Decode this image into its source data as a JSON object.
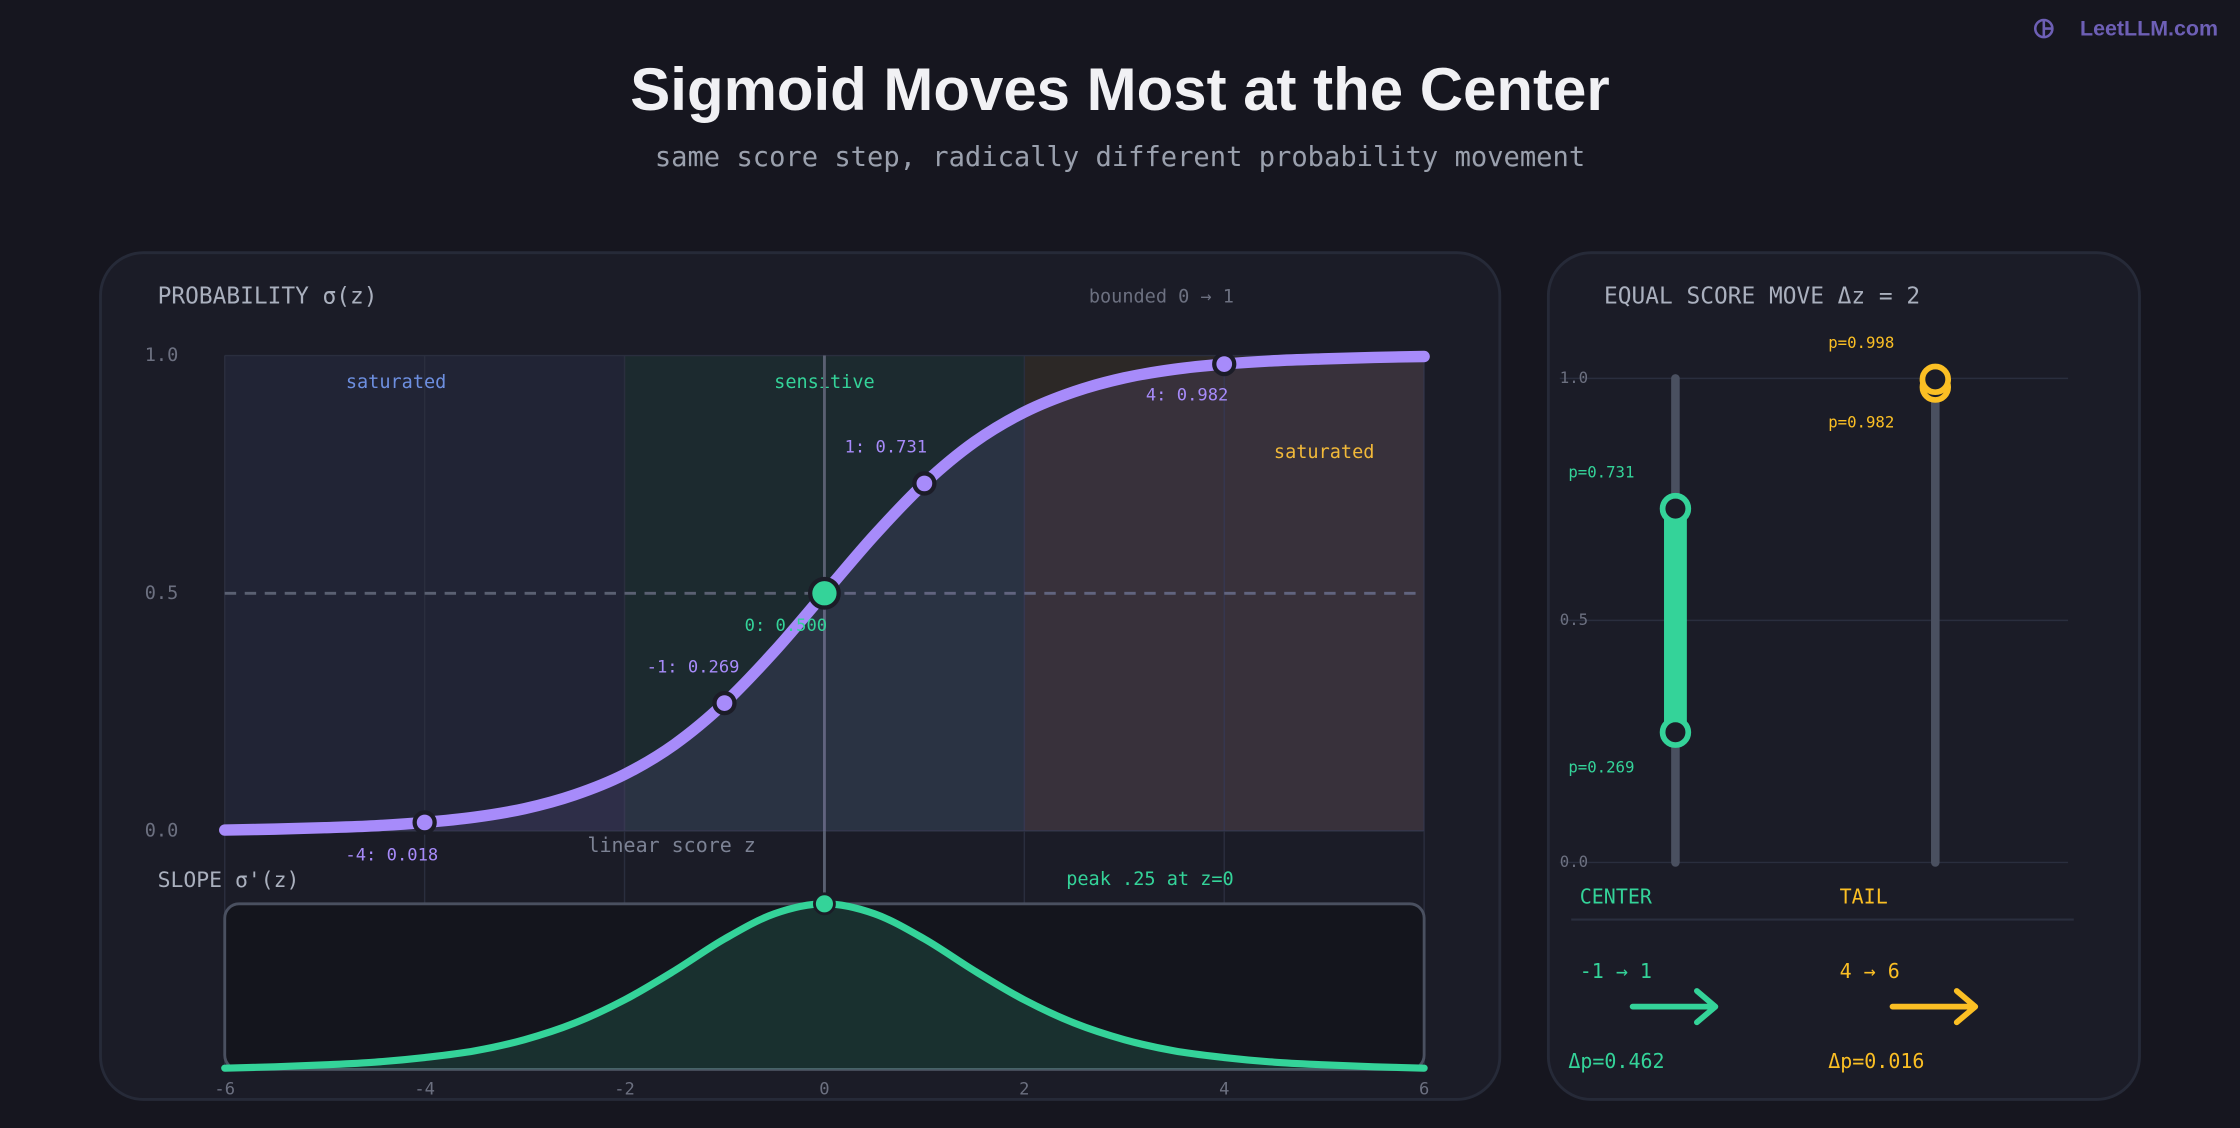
{
  "brand": "LeetLLM.com",
  "title": "Sigmoid Moves Most at the Center",
  "subtitle": "same score step, radically different probability movement",
  "chart_data": [
    {
      "type": "line",
      "title": "PROBABILITY σ(z)",
      "note": "bounded 0 → 1",
      "x_label": "linear score z",
      "xlim": [
        -6,
        6
      ],
      "ylim": [
        0,
        1
      ],
      "xticks": [
        -6,
        -4,
        -2,
        0,
        2,
        4,
        6
      ],
      "yticks": [
        {
          "value": 0,
          "label": "0.0"
        },
        {
          "value": 0.5,
          "label": "0.5"
        },
        {
          "value": 1,
          "label": "1.0"
        }
      ],
      "regions": [
        {
          "label": "saturated",
          "from": -6,
          "to": -2,
          "color": "#6d8fe0"
        },
        {
          "label": "sensitive",
          "from": -2,
          "to": 2,
          "color": "#34d399"
        },
        {
          "label": "saturated",
          "from": 2,
          "to": 6,
          "color": "#fbbf24"
        }
      ],
      "series": [
        {
          "color": "#a78bfa",
          "x": [
            -6,
            -5.5,
            -5,
            -4.5,
            -4,
            -3.5,
            -3,
            -2.5,
            -2,
            -1.5,
            -1,
            -0.5,
            0,
            0.5,
            1,
            1.5,
            2,
            2.5,
            3,
            3.5,
            4,
            4.5,
            5,
            5.5,
            6
          ],
          "values": [
            0.002,
            0.004,
            0.007,
            0.011,
            0.018,
            0.029,
            0.047,
            0.076,
            0.119,
            0.182,
            0.269,
            0.378,
            0.5,
            0.622,
            0.731,
            0.818,
            0.881,
            0.924,
            0.953,
            0.971,
            0.982,
            0.989,
            0.993,
            0.996,
            0.998
          ]
        }
      ],
      "points": {
        "x": [
          -4,
          -1,
          0,
          1,
          4
        ],
        "values": [
          0.018,
          0.269,
          0.5,
          0.731,
          0.982
        ],
        "value_labels": [
          "-4: 0.018",
          "-1: 0.269",
          "0: 0.500",
          "1: 0.731",
          "4: 0.982"
        ]
      }
    },
    {
      "type": "area",
      "title": "SLOPE σ'(z)",
      "annotation": "peak .25 at z=0",
      "xlim": [
        -6,
        6
      ],
      "ylim": [
        0,
        0.25
      ],
      "color": "#34d399",
      "x": [
        -6,
        -5.5,
        -5,
        -4.5,
        -4,
        -3.5,
        -3,
        -2.5,
        -2,
        -1.5,
        -1,
        -0.5,
        0,
        0.5,
        1,
        1.5,
        2,
        2.5,
        3,
        3.5,
        4,
        4.5,
        5,
        5.5,
        6
      ],
      "values": [
        0.002,
        0.004,
        0.007,
        0.011,
        0.018,
        0.028,
        0.045,
        0.07,
        0.105,
        0.149,
        0.197,
        0.235,
        0.25,
        0.235,
        0.197,
        0.149,
        0.105,
        0.07,
        0.045,
        0.028,
        0.018,
        0.011,
        0.007,
        0.004,
        0.002
      ]
    },
    {
      "type": "dumbbell",
      "title": "EQUAL SCORE MOVE Δz = 2",
      "ylim": [
        0,
        1
      ],
      "yticks": [
        {
          "value": 0,
          "label": "0.0"
        },
        {
          "value": 0.5,
          "label": "0.5"
        },
        {
          "value": 1,
          "label": "1.0"
        }
      ],
      "items": [
        {
          "name": "CENTER",
          "range": "-1 → 1",
          "color": "#34d399",
          "from": 0.269,
          "to": 0.731,
          "from_label": "p=0.269",
          "to_label": "p=0.731",
          "delta": 0.462,
          "delta_label": "Δp=0.462"
        },
        {
          "name": "TAIL",
          "range": "4 → 6",
          "color": "#fbbf24",
          "from": 0.982,
          "to": 0.998,
          "from_label": "p=0.982",
          "to_label": "p=0.998",
          "delta": 0.016,
          "delta_label": "Δp=0.016"
        }
      ]
    }
  ]
}
